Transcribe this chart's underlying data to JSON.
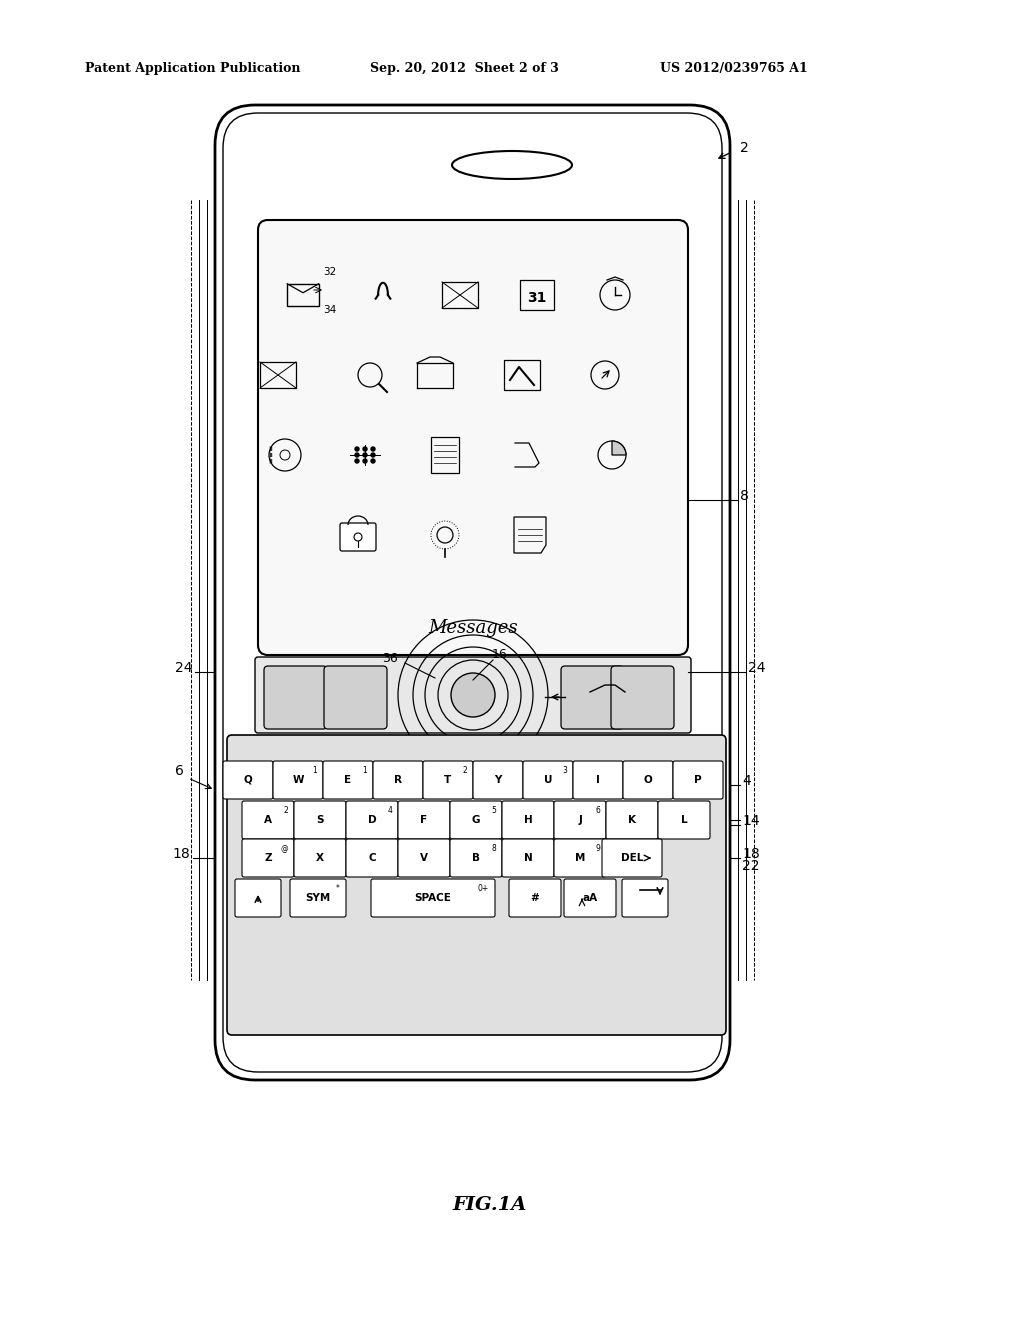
{
  "header_left": "Patent Application Publication",
  "header_mid": "Sep. 20, 2012  Sheet 2 of 3",
  "header_right": "US 2012/0239765 A1",
  "fig_label": "FIG.1A",
  "label_2": "2",
  "label_4": "4",
  "label_6": "6",
  "label_8": "8",
  "label_14": "14",
  "label_16": "16",
  "label_18": "18",
  "label_22": "22",
  "label_24": "24",
  "label_32": "32",
  "label_34": "34",
  "label_36": "36",
  "messages_text": "Messages",
  "bg_color": "#ffffff",
  "line_color": "#000000"
}
